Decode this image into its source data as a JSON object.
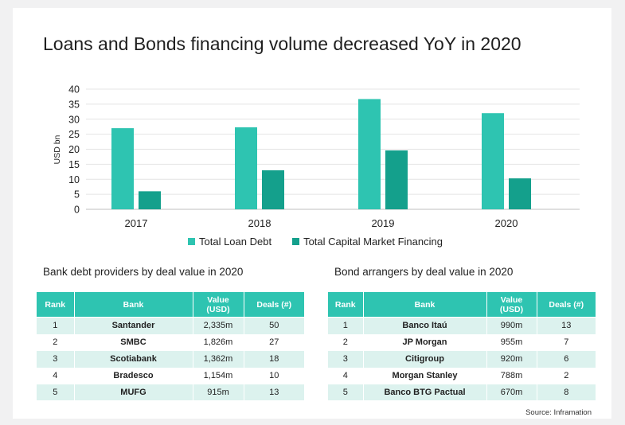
{
  "title": "Loans and Bonds financing volume decreased YoY in 2020",
  "colors": {
    "loan": "#2ec4b1",
    "capital": "#14a08c",
    "header": "#2ec4b1",
    "row_alt": "#dcf2ee"
  },
  "chart_data": {
    "type": "bar",
    "categories": [
      "2017",
      "2018",
      "2019",
      "2020"
    ],
    "series": [
      {
        "name": "Total Loan Debt",
        "values": [
          27,
          27.3,
          36.7,
          32
        ]
      },
      {
        "name": "Total Capital Market Financing",
        "values": [
          6,
          13,
          19.6,
          10.3
        ]
      }
    ],
    "ylabel": "USD bn",
    "ylim": [
      0,
      40
    ],
    "yticks": [
      "0",
      "5",
      "10",
      "15",
      "20",
      "25",
      "30",
      "35",
      "40"
    ],
    "grid": true,
    "legend": "bottom"
  },
  "table_left": {
    "title": "Bank debt providers by deal value in 2020",
    "headers": {
      "rank": "Rank",
      "bank": "Bank",
      "value_l1": "Value",
      "value_l2": "(USD)",
      "deals": "Deals (#)"
    },
    "rows": [
      {
        "rank": "1",
        "bank": "Santander",
        "value": "2,335m",
        "deals": "50"
      },
      {
        "rank": "2",
        "bank": "SMBC",
        "value": "1,826m",
        "deals": "27"
      },
      {
        "rank": "3",
        "bank": "Scotiabank",
        "value": "1,362m",
        "deals": "18"
      },
      {
        "rank": "4",
        "bank": "Bradesco",
        "value": "1,154m",
        "deals": "10"
      },
      {
        "rank": "5",
        "bank": "MUFG",
        "value": "915m",
        "deals": "13"
      }
    ]
  },
  "table_right": {
    "title": "Bond arrangers by deal value in 2020",
    "headers": {
      "rank": "Rank",
      "bank": "Bank",
      "value_l1": "Value",
      "value_l2": "(USD)",
      "deals": "Deals (#)"
    },
    "rows": [
      {
        "rank": "1",
        "bank": "Banco Itaú",
        "value": "990m",
        "deals": "13"
      },
      {
        "rank": "2",
        "bank": "JP Morgan",
        "value": "955m",
        "deals": "7"
      },
      {
        "rank": "3",
        "bank": "Citigroup",
        "value": "920m",
        "deals": "6"
      },
      {
        "rank": "4",
        "bank": "Morgan Stanley",
        "value": "788m",
        "deals": "2"
      },
      {
        "rank": "5",
        "bank": "Banco BTG Pactual",
        "value": "670m",
        "deals": "8"
      }
    ]
  },
  "source": "Source: Inframation"
}
